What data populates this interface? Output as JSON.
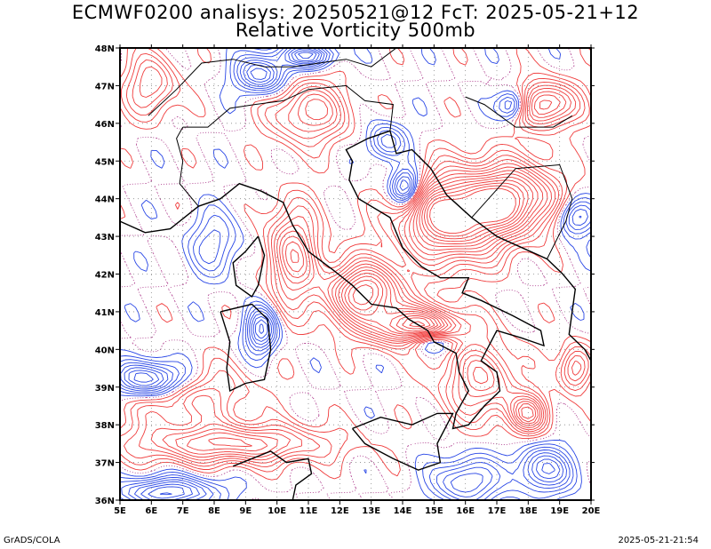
{
  "header": {
    "line1": "ECMWF0200 analisys: 20250521@12 FcT: 2025-05-21+12",
    "line2": "Relative Vorticity 500mb"
  },
  "axes": {
    "lat_labels": [
      "36N",
      "37N",
      "38N",
      "39N",
      "40N",
      "41N",
      "42N",
      "43N",
      "44N",
      "45N",
      "46N",
      "47N",
      "48N"
    ],
    "lon_labels": [
      "5E",
      "6E",
      "7E",
      "8E",
      "9E",
      "10E",
      "11E",
      "12E",
      "13E",
      "14E",
      "15E",
      "16E",
      "17E",
      "18E",
      "19E",
      "20E"
    ]
  },
  "map": {
    "lon_range": [
      5,
      20
    ],
    "lat_range": [
      36,
      48
    ],
    "positive_color": "#f03c3c",
    "negative_color": "#2846e6",
    "coast_color": "#000000",
    "grid_color": "#888888"
  },
  "footer": {
    "left": "GrADS/COLA",
    "right": "2025-05-21-21:54"
  }
}
